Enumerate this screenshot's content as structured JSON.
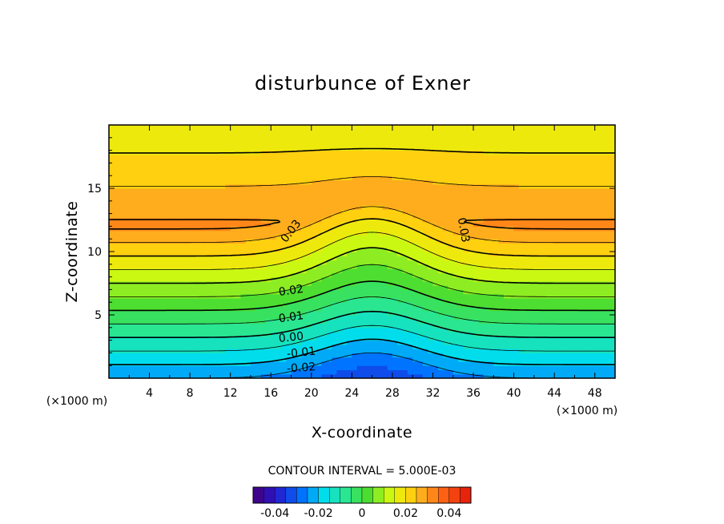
{
  "chart_data": {
    "type": "heatmap",
    "title": "disturbunce of Exner",
    "xlabel": "X-coordinate",
    "ylabel": "Z-coordinate",
    "x_unit": "(×1000 m)",
    "z_unit": "(×1000 m)",
    "xlim": [
      0,
      50
    ],
    "ylim": [
      0,
      20
    ],
    "x_ticks": [
      "4",
      "8",
      "12",
      "16",
      "20",
      "24",
      "28",
      "32",
      "36",
      "40",
      "44",
      "48"
    ],
    "y_ticks": [
      "5",
      "10",
      "15"
    ],
    "contour_interval_text": "CONTOUR INTERVAL = 5.000E-03",
    "contour_interval": 0.005,
    "field_range": [
      -0.025,
      0.034
    ],
    "contour_labels": [
      "0.03",
      "0.03",
      "0.02",
      "0.01",
      "0.00",
      "-0.01",
      "-0.02"
    ],
    "colorbar": {
      "range": [
        -0.05,
        0.05
      ],
      "tick_labels": [
        "-0.04",
        "-0.02",
        "0",
        "0.02",
        "0.04"
      ]
    }
  }
}
